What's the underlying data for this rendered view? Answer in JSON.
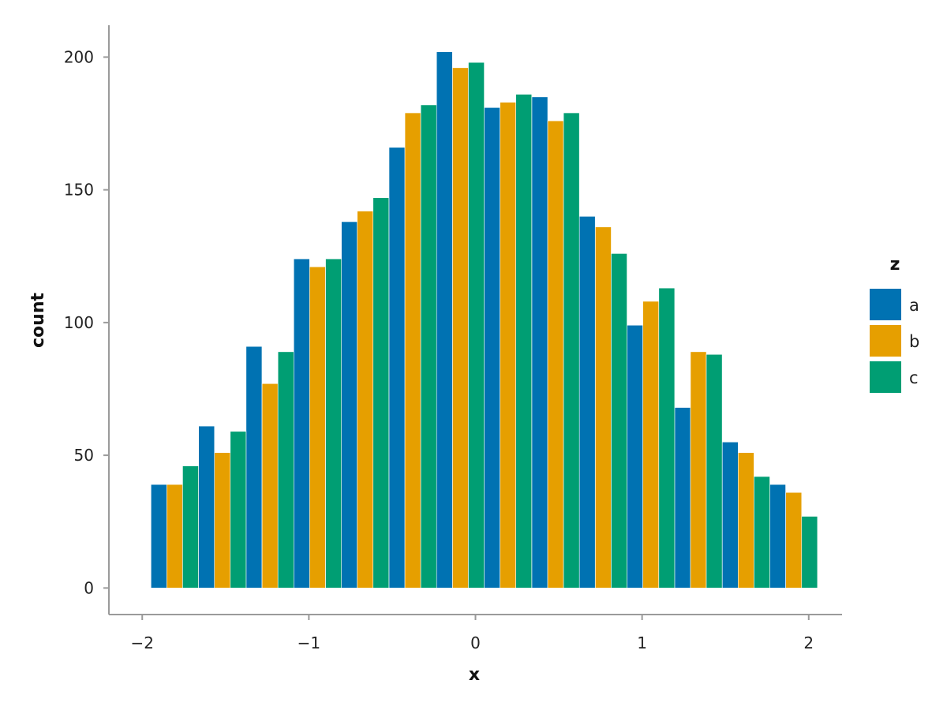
{
  "chart_data": {
    "type": "bar",
    "xlabel": "x",
    "ylabel": "count",
    "xlim": [
      -2.2,
      2.2
    ],
    "ylim": [
      -10,
      212
    ],
    "xticks": [
      -2,
      -1,
      0,
      1,
      2
    ],
    "xtick_labels": [
      "−2",
      "−1",
      "0",
      "1",
      "2"
    ],
    "yticks": [
      0,
      50,
      100,
      150,
      200
    ],
    "ytick_labels": [
      "0",
      "50",
      "100",
      "150",
      "200"
    ],
    "grid": false,
    "legend": {
      "title": "z",
      "placement": "right",
      "entries": [
        "a",
        "b",
        "c"
      ]
    },
    "bin_width": 0.0952,
    "series": [
      {
        "name": "a",
        "color": "#0072B2",
        "x": [
          -1.9,
          -1.614,
          -1.329,
          -1.043,
          -0.757,
          -0.471,
          -0.186,
          0.1,
          0.386,
          0.671,
          0.957,
          1.243,
          1.529,
          1.814
        ],
        "values": [
          39,
          61,
          91,
          124,
          138,
          166,
          202,
          181,
          185,
          140,
          99,
          68,
          55,
          39
        ]
      },
      {
        "name": "b",
        "color": "#E69F00",
        "x": [
          -1.805,
          -1.519,
          -1.233,
          -0.948,
          -0.662,
          -0.376,
          -0.09,
          0.195,
          0.481,
          0.767,
          1.052,
          1.338,
          1.624,
          1.91
        ],
        "values": [
          39,
          51,
          77,
          121,
          142,
          179,
          196,
          183,
          176,
          136,
          108,
          89,
          51,
          36
        ]
      },
      {
        "name": "c",
        "color": "#009E73",
        "x": [
          -1.71,
          -1.424,
          -1.138,
          -0.852,
          -0.567,
          -0.281,
          0.005,
          0.29,
          0.576,
          0.862,
          1.148,
          1.433,
          1.719,
          2.005
        ],
        "values": [
          46,
          59,
          89,
          124,
          147,
          182,
          198,
          186,
          179,
          126,
          113,
          88,
          42,
          27
        ]
      }
    ]
  }
}
